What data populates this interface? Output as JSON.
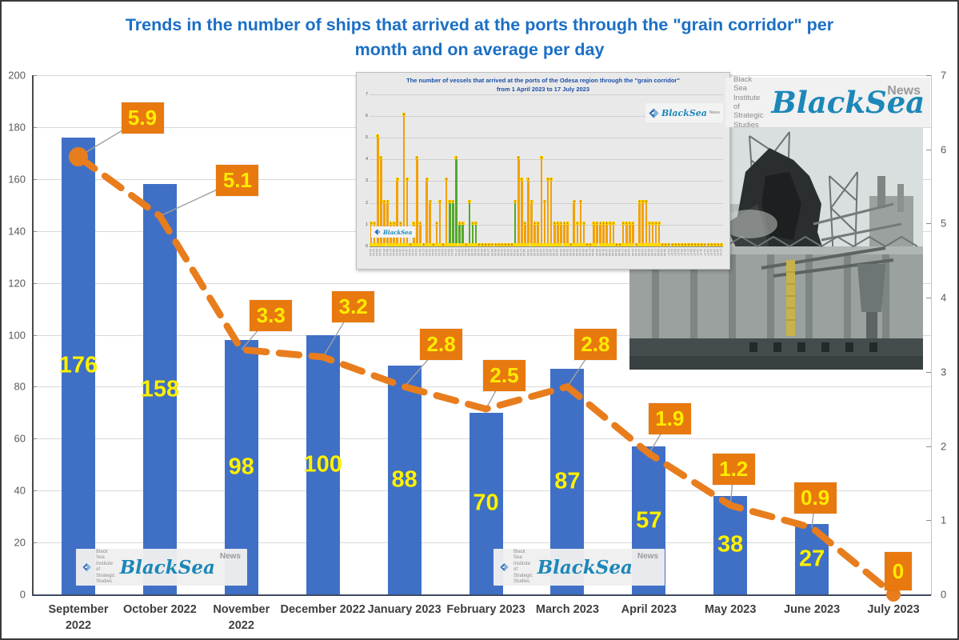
{
  "page": {
    "background": "#FFFFFF",
    "frame_color": "#3A3A3A"
  },
  "title": {
    "text": "Trends in the number of ships that arrived at the ports through the \"grain corridor\" per month and on average per day",
    "color": "#1B6FC5"
  },
  "logo": {
    "org_lines": "Black Sea\nInstitute of\nStrategic\nStudies",
    "brand": "BlackSea",
    "suffix": "News",
    "brand_color": "#1C87B8",
    "diamond_color": "#2B66B1"
  },
  "chart_data": [
    {
      "id": "main",
      "type": "bar",
      "title": "Trends in the number of ships that arrived at the ports through the \"grain corridor\" per month and on average per day",
      "categories": [
        "September 2022",
        "October 2022",
        "November 2022",
        "December 2022",
        "January 2023",
        "February 2023",
        "March 2023",
        "April 2023",
        "May 2023",
        "June 2023",
        "July 2023"
      ],
      "category_lines": [
        [
          "September",
          "2022"
        ],
        [
          "October 2022"
        ],
        [
          "November",
          "2022"
        ],
        [
          "December 2022"
        ],
        [
          "January 2023"
        ],
        [
          "February 2023"
        ],
        [
          "March 2023"
        ],
        [
          "April 2023"
        ],
        [
          "May 2023"
        ],
        [
          "June 2023"
        ],
        [
          "July 2023"
        ]
      ],
      "series": [
        {
          "name": "ships per month",
          "type": "column",
          "color": "#4070C6",
          "value_label_color": "#FFF200",
          "values": [
            176,
            158,
            98,
            100,
            88,
            70,
            87,
            57,
            38,
            27,
            0
          ]
        },
        {
          "name": "average ships per day",
          "type": "dashed-line",
          "color": "#E87D1E",
          "label_bg": "#E8790F",
          "label_color": "#FFEB00",
          "values": [
            5.9,
            5.1,
            3.3,
            3.2,
            2.8,
            2.5,
            2.8,
            1.9,
            1.2,
            0.9,
            0
          ],
          "labels": [
            "5.9",
            "5.1",
            "3.3",
            "3.2",
            "2.8",
            "2.5",
            "2.8",
            "1.9",
            "1.2",
            "0.9",
            "0"
          ]
        }
      ],
      "left_axis": {
        "min": 0,
        "max": 200,
        "step": 20
      },
      "right_axis": {
        "min": 0,
        "max": 7,
        "step": 1
      },
      "gridlines": true,
      "legend": "none"
    },
    {
      "id": "inset",
      "type": "bar",
      "title": "The number of vessels that arrived at the ports of the Odesa region through the \"grain corridor\" from 1 April 2023 to 17 July 2023",
      "title_lines": [
        "The number of vessels that arrived at the ports of the Odesa region through the \"grain corridor\"",
        "from 1 April 2023 to 17 July 2023"
      ],
      "start_date": "2023-04-01",
      "days": 108,
      "ylim": [
        0,
        7
      ],
      "y_step": 1,
      "values_note": "daily vessel arrivals, estimated from pixels",
      "values": [
        1,
        1,
        5,
        4,
        2,
        2,
        1,
        1,
        3,
        1,
        6,
        3,
        0,
        1,
        4,
        1,
        0,
        3,
        2,
        0,
        1,
        2,
        0,
        3,
        2,
        2,
        4,
        1,
        1,
        0,
        2,
        1,
        1,
        0,
        0,
        0,
        0,
        0,
        0,
        0,
        0,
        0,
        0,
        0,
        2,
        4,
        3,
        1,
        3,
        2,
        1,
        1,
        4,
        2,
        3,
        3,
        1,
        1,
        1,
        1,
        1,
        0,
        2,
        1,
        2,
        1,
        0,
        0,
        1,
        1,
        1,
        1,
        1,
        1,
        1,
        0,
        0,
        1,
        1,
        1,
        1,
        0,
        2,
        2,
        2,
        1,
        1,
        1,
        1,
        0,
        0,
        0,
        0,
        0,
        0,
        0,
        0,
        0,
        0,
        0,
        0,
        0,
        0,
        0,
        0,
        0,
        0,
        0
      ],
      "green_days": [
        24,
        25,
        26,
        27,
        28,
        29,
        30,
        31,
        32,
        44
      ],
      "colors": {
        "bar": "#F2A105",
        "green": "#55A829",
        "cap": "#FFD900",
        "value": "#A33100",
        "bg": "#E9E9E9",
        "title": "#1A4FA8"
      }
    }
  ]
}
